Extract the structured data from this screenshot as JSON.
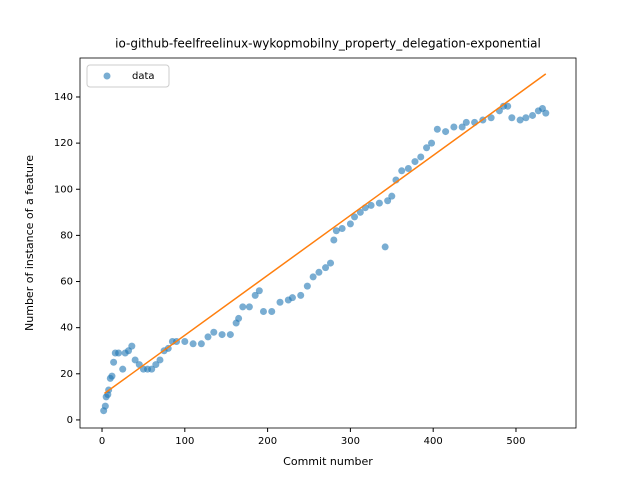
{
  "chart_data": {
    "type": "scatter",
    "title": "io-github-feelfreelinux-wykopmobilny_property_delegation-exponential",
    "x_label": "Commit number",
    "y_label": "Number of instance of a feature",
    "xlim": [
      -26.6,
      572.5
    ],
    "ylim": [
      -3.5,
      156.9
    ],
    "xticks": [
      0,
      100,
      200,
      300,
      400,
      500
    ],
    "yticks": [
      0,
      20,
      40,
      60,
      80,
      100,
      120,
      140
    ],
    "legend": "upper left",
    "series": [
      {
        "name": "data",
        "type": "scatter",
        "color": "#1f77b4",
        "x": [
          2,
          4,
          5,
          7,
          8,
          10,
          12,
          14,
          16,
          20,
          25,
          28,
          32,
          36,
          40,
          45,
          50,
          55,
          60,
          65,
          70,
          75,
          80,
          85,
          90,
          100,
          110,
          120,
          128,
          135,
          145,
          155,
          162,
          165,
          170,
          178,
          185,
          190,
          195,
          205,
          215,
          225,
          230,
          240,
          248,
          255,
          262,
          270,
          276,
          280,
          283,
          290,
          300,
          305,
          312,
          318,
          325,
          335,
          342,
          345,
          350,
          355,
          362,
          370,
          378,
          385,
          392,
          398,
          405,
          415,
          425,
          435,
          440,
          450,
          460,
          470,
          480,
          485,
          490,
          495,
          505,
          512,
          520,
          527,
          532,
          536
        ],
        "values": [
          4,
          6,
          10,
          11,
          13,
          18,
          19,
          25,
          29,
          29,
          22,
          29,
          30,
          32,
          26,
          24,
          22,
          22,
          22,
          24,
          26,
          30,
          31,
          34,
          34,
          34,
          33,
          33,
          36,
          38,
          37,
          37,
          42,
          44,
          49,
          49,
          54,
          56,
          47,
          47,
          51,
          52,
          53,
          54,
          58,
          62,
          64,
          66,
          68,
          78,
          82,
          83,
          85,
          88,
          90,
          92,
          93,
          94,
          75,
          95,
          97,
          104,
          108,
          109,
          112,
          114,
          118,
          120,
          126,
          125,
          127,
          127,
          129,
          129,
          130,
          131,
          134,
          136,
          136,
          131,
          130,
          131,
          132,
          134,
          135,
          133
        ]
      },
      {
        "type": "line",
        "color": "#ff7f0e",
        "x": [
          3,
          536
        ],
        "values": [
          11.5,
          150
        ]
      }
    ]
  }
}
